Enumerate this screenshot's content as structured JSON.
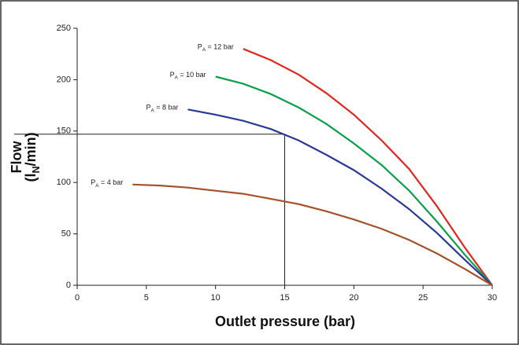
{
  "chart_data": {
    "type": "line",
    "x_label": "Outlet pressure (bar)",
    "y_label_lines": [
      "Flow",
      "(lN/min)"
    ],
    "xlim": [
      0,
      30
    ],
    "xticks": [
      0,
      5,
      10,
      15,
      20,
      25,
      30
    ],
    "ylim": [
      0,
      250
    ],
    "yticks": [
      0,
      50,
      100,
      150,
      200,
      250
    ],
    "guide_point": {
      "x": 15,
      "y": 147
    },
    "series": [
      {
        "name": "PA = 12 bar",
        "color": "#e3261f",
        "x": [
          12,
          14,
          16,
          18,
          20,
          22,
          24,
          26,
          28,
          30
        ],
        "values": [
          230,
          219,
          205,
          187,
          166,
          141,
          113,
          77,
          37,
          0
        ]
      },
      {
        "name": "PA = 10 bar",
        "color": "#0aa14b",
        "x": [
          10,
          12,
          14,
          16,
          18,
          20,
          22,
          24,
          26,
          28,
          30
        ],
        "values": [
          203,
          196,
          186,
          173,
          157,
          138,
          117,
          92,
          62,
          30,
          0
        ]
      },
      {
        "name": "PA = 8 bar",
        "color": "#2b3a97",
        "x": [
          8,
          10,
          12,
          14,
          16,
          18,
          20,
          22,
          24,
          26,
          28,
          30
        ],
        "values": [
          171,
          166,
          160,
          152,
          141,
          127,
          112,
          94,
          74,
          51,
          25,
          0
        ]
      },
      {
        "name": "PA = 4 bar",
        "color": "#a6522a",
        "x": [
          4,
          6,
          8,
          10,
          12,
          14,
          16,
          18,
          20,
          22,
          24,
          26,
          28,
          30
        ],
        "values": [
          98,
          97,
          95,
          92,
          89,
          84,
          79,
          72,
          64,
          55,
          44,
          31,
          16,
          0
        ]
      }
    ]
  }
}
